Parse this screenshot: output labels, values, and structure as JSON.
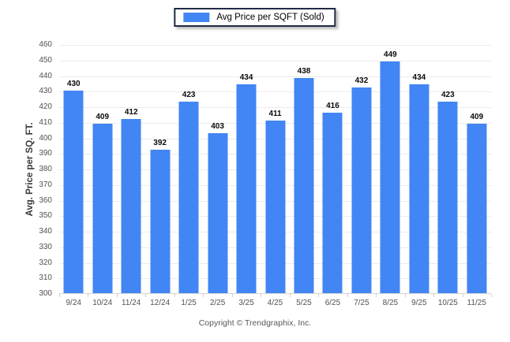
{
  "legend": {
    "label": "Avg Price per SQFT (Sold)",
    "swatch_color": "#4285f4"
  },
  "footer": {
    "copyright": "Copyright © Trendgraphix, Inc."
  },
  "chart_data": {
    "type": "bar",
    "title": "",
    "series_name": "Avg Price per SQFT (Sold)",
    "categories": [
      "9/24",
      "10/24",
      "11/24",
      "12/24",
      "1/25",
      "2/25",
      "3/25",
      "4/25",
      "5/25",
      "6/25",
      "7/25",
      "8/25",
      "9/25",
      "10/25",
      "11/25"
    ],
    "values": [
      430,
      409,
      412,
      392,
      423,
      403,
      434,
      411,
      438,
      416,
      432,
      449,
      434,
      423,
      409
    ],
    "xlabel": "",
    "ylabel": "Avg. Price per SQ. FT.",
    "ylim": [
      300,
      460
    ],
    "ytick_step": 10,
    "grid": true,
    "data_labels": true,
    "legend_position": "top"
  },
  "colors": {
    "bar": "#4285f4",
    "gridline": "#edeaea",
    "axis_line": "#d5d5d5",
    "tick_label": "#56514d",
    "value_label": "#0a0a0a",
    "legend_border": "#1f2a44"
  }
}
